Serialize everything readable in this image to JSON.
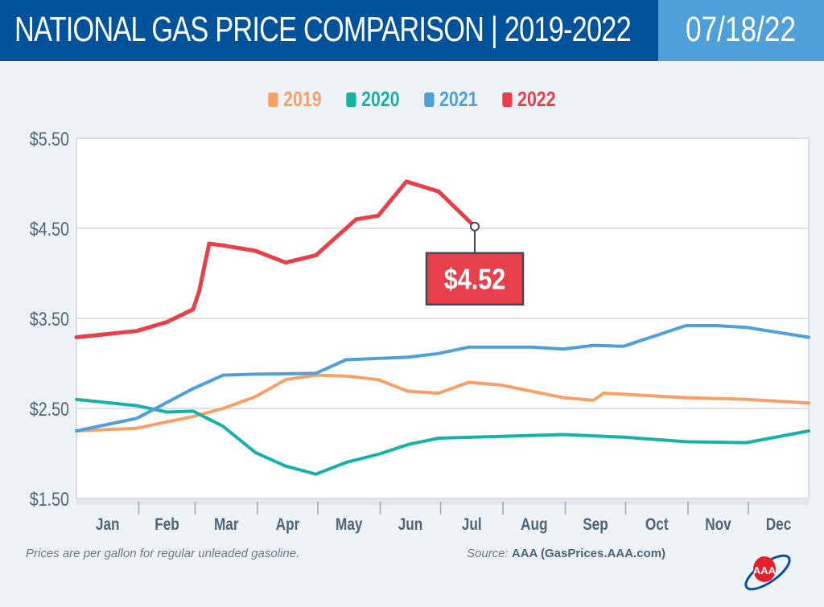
{
  "header": {
    "title": "NATIONAL GAS PRICE COMPARISON | 2019-2022",
    "date": "07/18/22"
  },
  "footer": {
    "note": "Prices are per gallon for regular unleaded gasoline.",
    "source_label": "Source:",
    "source_value": "AAA (GasPrices.AAA.com)",
    "logo_text": "AAA"
  },
  "chart_data": {
    "type": "line",
    "title": "",
    "xlabel": "",
    "ylabel": "",
    "ylim": [
      1.5,
      5.5
    ],
    "yticks": [
      "$5.50",
      "$4.50",
      "$3.50",
      "$2.50",
      "$1.50"
    ],
    "ytick_values": [
      5.5,
      4.5,
      3.5,
      2.5,
      1.5
    ],
    "xticks": [
      "Jan",
      "Feb",
      "Mar",
      "Apr",
      "May",
      "Jun",
      "Jul",
      "Aug",
      "Sep",
      "Oct",
      "Nov",
      "Dec"
    ],
    "grid": true,
    "legend": "top-center",
    "series": [
      {
        "name": "2019",
        "color": "#f9a068",
        "points": [
          [
            "01-01",
            2.25
          ],
          [
            "01-31",
            2.28
          ],
          [
            "02-28",
            2.41
          ],
          [
            "03-15",
            2.5
          ],
          [
            "03-31",
            2.63
          ],
          [
            "04-15",
            2.82
          ],
          [
            "04-30",
            2.87
          ],
          [
            "05-15",
            2.86
          ],
          [
            "05-31",
            2.82
          ],
          [
            "06-15",
            2.69
          ],
          [
            "06-30",
            2.67
          ],
          [
            "07-15",
            2.79
          ],
          [
            "07-31",
            2.76
          ],
          [
            "08-31",
            2.62
          ],
          [
            "09-15",
            2.59
          ],
          [
            "09-20",
            2.67
          ],
          [
            "10-31",
            2.62
          ],
          [
            "11-30",
            2.6
          ],
          [
            "12-31",
            2.56
          ]
        ]
      },
      {
        "name": "2020",
        "color": "#16b2a8",
        "points": [
          [
            "01-01",
            2.6
          ],
          [
            "01-31",
            2.53
          ],
          [
            "02-15",
            2.46
          ],
          [
            "02-28",
            2.47
          ],
          [
            "03-15",
            2.3
          ],
          [
            "03-31",
            2.01
          ],
          [
            "04-15",
            1.86
          ],
          [
            "04-30",
            1.77
          ],
          [
            "05-15",
            1.9
          ],
          [
            "05-31",
            1.99
          ],
          [
            "06-15",
            2.1
          ],
          [
            "06-30",
            2.17
          ],
          [
            "07-31",
            2.19
          ],
          [
            "08-31",
            2.21
          ],
          [
            "09-30",
            2.18
          ],
          [
            "10-31",
            2.13
          ],
          [
            "11-30",
            2.12
          ],
          [
            "12-31",
            2.25
          ]
        ]
      },
      {
        "name": "2021",
        "color": "#4f9fd8",
        "points": [
          [
            "01-01",
            2.25
          ],
          [
            "01-31",
            2.39
          ],
          [
            "02-28",
            2.72
          ],
          [
            "03-15",
            2.87
          ],
          [
            "03-31",
            2.88
          ],
          [
            "04-30",
            2.89
          ],
          [
            "05-15",
            3.04
          ],
          [
            "06-15",
            3.07
          ],
          [
            "06-30",
            3.11
          ],
          [
            "07-15",
            3.18
          ],
          [
            "08-15",
            3.18
          ],
          [
            "08-31",
            3.16
          ],
          [
            "09-15",
            3.2
          ],
          [
            "09-30",
            3.19
          ],
          [
            "10-31",
            3.42
          ],
          [
            "11-15",
            3.42
          ],
          [
            "11-30",
            3.4
          ],
          [
            "12-31",
            3.29
          ]
        ]
      },
      {
        "name": "2022",
        "color": "#e8404b",
        "points": [
          [
            "01-01",
            3.29
          ],
          [
            "01-31",
            3.36
          ],
          [
            "02-15",
            3.46
          ],
          [
            "02-28",
            3.6
          ],
          [
            "03-03",
            3.8
          ],
          [
            "03-08",
            4.33
          ],
          [
            "03-15",
            4.31
          ],
          [
            "03-31",
            4.25
          ],
          [
            "04-15",
            4.12
          ],
          [
            "04-30",
            4.2
          ],
          [
            "05-10",
            4.4
          ],
          [
            "05-20",
            4.6
          ],
          [
            "05-31",
            4.64
          ],
          [
            "06-14",
            5.02
          ],
          [
            "06-30",
            4.91
          ],
          [
            "07-18",
            4.52
          ]
        ]
      }
    ],
    "annotation": {
      "label": "$4.52",
      "date": "07-18",
      "value": 4.52
    }
  }
}
